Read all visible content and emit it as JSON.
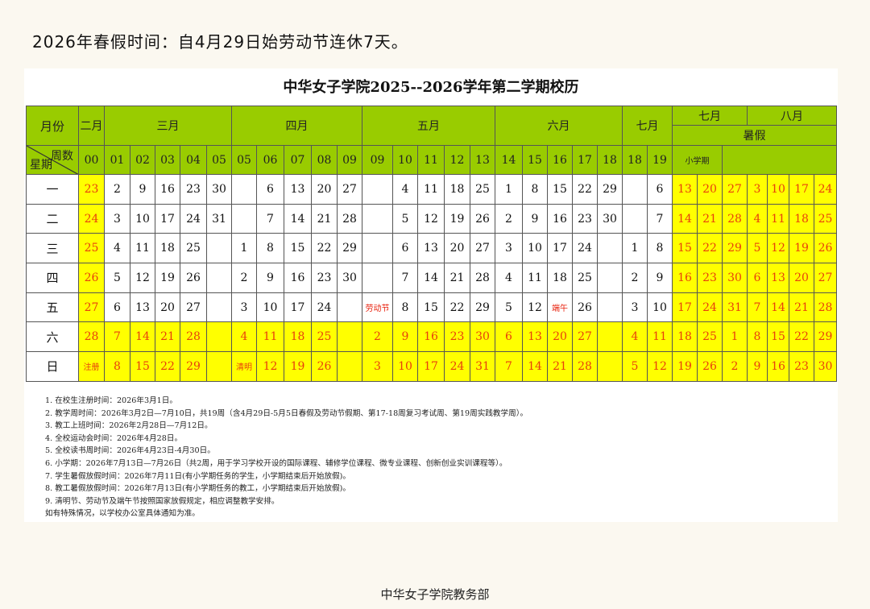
{
  "headline": "2026年春假时间：自4月29日始劳动节连休7天。",
  "title": "中华女子学院2025--2026学年第二学期校历",
  "header": {
    "month_label": "月份",
    "corner_top": "周数",
    "corner_bottom": "星期",
    "months": [
      "二月",
      "三月",
      "四月",
      "五月",
      "六月",
      "七月"
    ],
    "summer_months": [
      "七月",
      "八月"
    ],
    "summer_label": "暑假",
    "mini_term": "小学期",
    "weeks": [
      "00",
      "01",
      "02",
      "03",
      "04",
      "05",
      "05",
      "06",
      "07",
      "08",
      "09",
      "09",
      "10",
      "11",
      "12",
      "13",
      "14",
      "15",
      "16",
      "17",
      "18",
      "18",
      "19"
    ]
  },
  "weekdays": [
    "一",
    "二",
    "三",
    "四",
    "五",
    "六",
    "日"
  ],
  "columns": [
    [
      "23",
      "24",
      "25",
      "26",
      "27",
      "28",
      "注册"
    ],
    [
      "2",
      "3",
      "4",
      "5",
      "6",
      "7",
      "8"
    ],
    [
      "9",
      "10",
      "11",
      "12",
      "13",
      "14",
      "15"
    ],
    [
      "16",
      "17",
      "18",
      "19",
      "20",
      "21",
      "22"
    ],
    [
      "23",
      "24",
      "25",
      "26",
      "27",
      "28",
      "29"
    ],
    [
      "30",
      "31",
      "",
      "",
      "",
      "",
      ""
    ],
    [
      "",
      "",
      "1",
      "2",
      "3",
      "4",
      "清明"
    ],
    [
      "6",
      "7",
      "8",
      "9",
      "10",
      "11",
      "12"
    ],
    [
      "13",
      "14",
      "15",
      "16",
      "17",
      "18",
      "19"
    ],
    [
      "20",
      "21",
      "22",
      "23",
      "24",
      "25",
      "26"
    ],
    [
      "27",
      "28",
      "29",
      "30",
      "",
      "",
      ""
    ],
    [
      "",
      "",
      "",
      "",
      "劳动节",
      "2",
      "3"
    ],
    [
      "4",
      "5",
      "6",
      "7",
      "8",
      "9",
      "10"
    ],
    [
      "11",
      "12",
      "13",
      "14",
      "15",
      "16",
      "17"
    ],
    [
      "18",
      "19",
      "20",
      "21",
      "22",
      "23",
      "24"
    ],
    [
      "25",
      "26",
      "27",
      "28",
      "29",
      "30",
      "31"
    ],
    [
      "1",
      "2",
      "3",
      "4",
      "5",
      "6",
      "7"
    ],
    [
      "8",
      "9",
      "10",
      "11",
      "12",
      "13",
      "14"
    ],
    [
      "15",
      "16",
      "17",
      "18",
      "端午",
      "20",
      "21"
    ],
    [
      "22",
      "23",
      "24",
      "25",
      "26",
      "27",
      "28"
    ],
    [
      "29",
      "30",
      "",
      "",
      "",
      "",
      ""
    ],
    [
      "",
      "",
      "1",
      "2",
      "3",
      "4",
      "5"
    ],
    [
      "6",
      "7",
      "8",
      "9",
      "10",
      "11",
      "12"
    ],
    [
      "13",
      "14",
      "15",
      "16",
      "17",
      "18",
      "19"
    ],
    [
      "20",
      "21",
      "22",
      "23",
      "24",
      "25",
      "26"
    ],
    [
      "27",
      "28",
      "29",
      "30",
      "31",
      "1",
      "2"
    ],
    [
      "3",
      "4",
      "5",
      "6",
      "7",
      "8",
      "9"
    ],
    [
      "10",
      "11",
      "12",
      "13",
      "14",
      "15",
      "16"
    ],
    [
      "17",
      "18",
      "19",
      "20",
      "21",
      "22",
      "23"
    ],
    [
      "24",
      "25",
      "26",
      "27",
      "28",
      "29",
      "30"
    ]
  ],
  "notes": [
    "1. 在校生注册时间：2026年3月1日。",
    "2. 教学周时间：2026年3月2日—7月10日，共19周（含4月29日-5月5日春假及劳动节假期、第17-18周复习考试周、第19周实践教学周）。",
    "3. 教工上班时间：2026年2月28日—7月12日。",
    "4. 全校运动会时间：2026年4月28日。",
    "5. 全校读书周时间：2026年4月23日-4月30日。",
    "6. 小学期：2026年7月13日—7月26日（共2周，用于学习学校开设的国际课程、辅修学位课程、微专业课程、创新创业实训课程等）。",
    "7. 学生暑假放假时间：2026年7月11日(有小学期任务的学生，小学期结束后开始放假)。",
    "8. 教工暑假放假时间：2026年7月13日(有小学期任务的教工，小学期结束后开始放假)。",
    "9. 清明节、劳动节及端午节按照国家放假规定，相应调整教学安排。",
    "如有特殊情况，以学校办公室具体通知为准。"
  ],
  "footer": "中华女子学院教务部",
  "colors": {
    "header_green": "#99cc00",
    "holiday_yellow": "#ffff00",
    "holiday_text": "#e8400c",
    "page_bg": "#fbf8f0"
  }
}
